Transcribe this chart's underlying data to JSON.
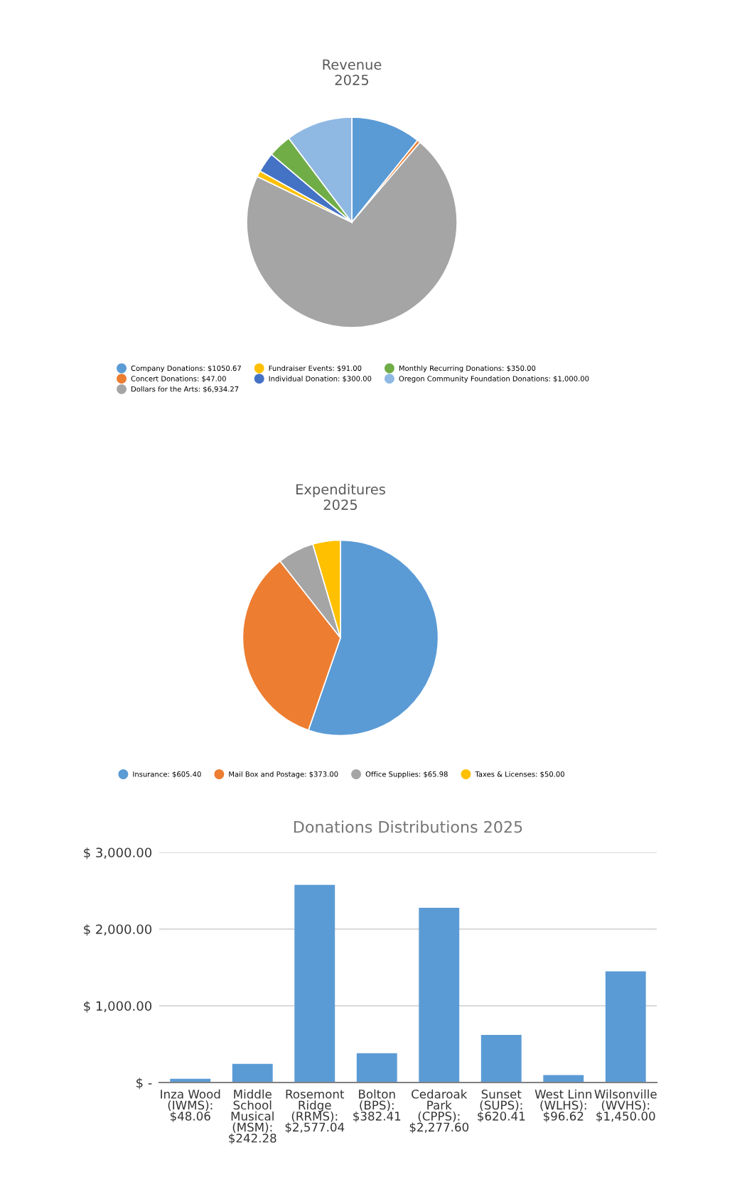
{
  "chart_data": [
    {
      "type": "pie",
      "title": "Revenue\n2025",
      "legend": "bottom",
      "categories": [
        "Company Donations: $1050.67",
        "Concert Donations: $47.00",
        "Dollars for the Arts: $6,934.27",
        "Fundraiser Events: $91.00",
        "Individual Donation: $300.00",
        "Monthly Recurring Donations: $350.00",
        "Oregon Community Foundation Donations: $1,000.00"
      ],
      "values": [
        1050.67,
        47,
        6934.27,
        91,
        300,
        350,
        1000
      ],
      "colors": [
        "#5b9bd5",
        "#ed7d31",
        "#a5a5a5",
        "#ffc000",
        "#4472c4",
        "#70ad47",
        "#8fb8e3"
      ]
    },
    {
      "type": "pie",
      "title": "Expenditures\n2025",
      "legend": "bottom",
      "categories": [
        "Insurance: $605.40",
        "Mail Box and Postage: $373.00",
        "Office Supplies: $65.98",
        "Taxes & Licenses: $50.00"
      ],
      "values": [
        605.4,
        373.0,
        65.98,
        50.0
      ],
      "colors": [
        "#5b9bd5",
        "#ed7d31",
        "#a5a5a5",
        "#ffc000"
      ]
    },
    {
      "type": "bar",
      "title": "Donations Distributions 2025",
      "categories": [
        "Inza Wood\n(IWMS):\n$48.06",
        "Middle\nSchool\nMusical\n(MSM):\n$242.28",
        "Rosemont\nRidge\n(RRMS):\n$2,577.04",
        "Bolton\n(BPS):\n$382.41",
        "Cedaroak\nPark\n(CPPS):\n$2,277.60",
        "Sunset\n(SUPS):\n$620.41",
        "West Linn\n(WLHS):\n$96.62",
        "Wilsonville\n(WVHS):\n$1,450.00"
      ],
      "values": [
        48.06,
        242.28,
        2577.04,
        382.41,
        2277.6,
        620.41,
        96.62,
        1450.0
      ],
      "color": "#5b9bd5",
      "ylim": [
        0,
        3000
      ],
      "yticks": [
        {
          "value": 0,
          "label": "$ -"
        },
        {
          "value": 1000,
          "label": "$ 1,000.00"
        },
        {
          "value": 2000,
          "label": "$ 2,000.00"
        },
        {
          "value": 3000,
          "label": "$ 3,000.00"
        }
      ],
      "grid": "y"
    }
  ]
}
